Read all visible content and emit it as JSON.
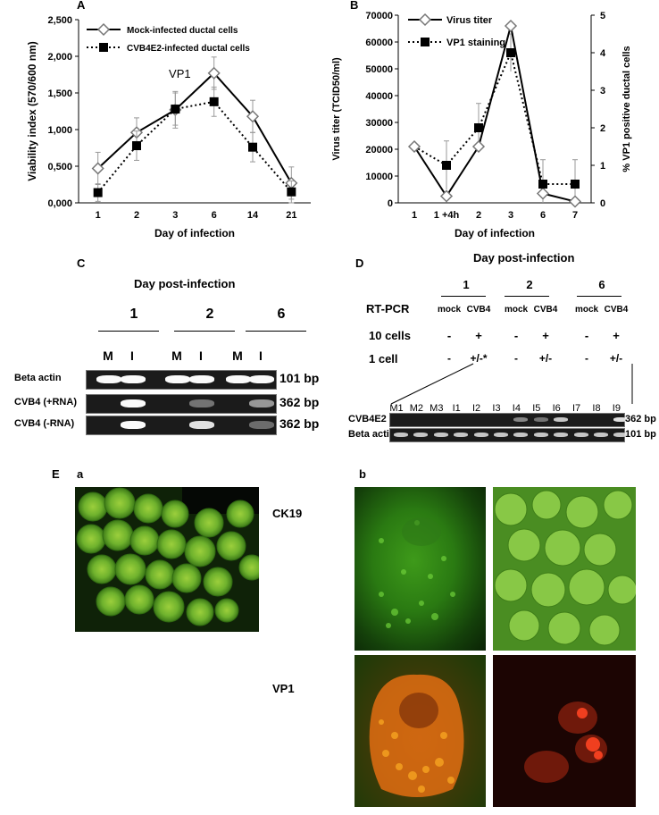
{
  "panel_labels": {
    "A": "A",
    "B": "B",
    "C": "C",
    "D": "D",
    "E": "E",
    "Ea": "a",
    "Eb": "b"
  },
  "chart_data": [
    {
      "type": "line",
      "panel": "A",
      "categories": [
        "1",
        "2",
        "3",
        "6",
        "14",
        "21"
      ],
      "xlabel": "Day of infection",
      "ylabel": "Viability index (570/600 nm)",
      "ylim": [
        0,
        2500
      ],
      "yticks": [
        "0,000",
        "0,500",
        "1,000",
        "1,500",
        "2,000",
        "2,500"
      ],
      "annotation": "VP1",
      "legend_position": "top-left",
      "series": [
        {
          "name": "Mock-infected ductal cells",
          "values": [
            0.47,
            0.96,
            1.27,
            1.77,
            1.18,
            0.27
          ],
          "errors": [
            0.22,
            0.2,
            0.25,
            0.22,
            0.22,
            0.22
          ],
          "style": "solid",
          "marker": "diamond-open"
        },
        {
          "name": "CVB4E2-infected ductal cells",
          "values": [
            0.14,
            0.78,
            1.28,
            1.38,
            0.76,
            0.15
          ],
          "errors": [
            0.12,
            0.2,
            0.22,
            0.2,
            0.2,
            0.15
          ],
          "style": "dotted",
          "marker": "square-filled"
        }
      ]
    },
    {
      "type": "line",
      "panel": "B",
      "categories": [
        "1",
        "1 +4h",
        "2",
        "3",
        "6",
        "7"
      ],
      "xlabel": "Day of infection",
      "ylabel_left": "Virus  titer (TCID50/ml)",
      "ylabel_right": "% VP1 positive ductal cells",
      "ylim_left": [
        0,
        70000
      ],
      "ylim_right": [
        0,
        5
      ],
      "yticks_left": [
        "0",
        "10000",
        "20000",
        "30000",
        "40000",
        "50000",
        "60000",
        "70000"
      ],
      "yticks_right": [
        "0",
        "1",
        "2",
        "3",
        "4",
        "5"
      ],
      "legend_position": "top-left",
      "series": [
        {
          "name": "Virus titer",
          "axis": "left",
          "values": [
            21000,
            2500,
            21000,
            66000,
            3500,
            500
          ],
          "style": "solid",
          "marker": "diamond-open"
        },
        {
          "name": "VP1 staining",
          "axis": "right",
          "values": [
            null,
            1.0,
            2.0,
            4.0,
            0.5,
            0.5
          ],
          "errors": [
            null,
            0.65,
            0.65,
            0.5,
            0.65,
            0.65
          ],
          "style": "dotted",
          "marker": "square-filled"
        }
      ]
    }
  ],
  "panelC": {
    "title": "Day post-infection",
    "days": [
      "1",
      "2",
      "6"
    ],
    "lanes": [
      "M",
      "I",
      "M",
      "I",
      "M",
      "I"
    ],
    "rows": [
      {
        "label": "Beta actin",
        "size": "101 bp"
      },
      {
        "label": "CVB4 (+RNA)",
        "size": "362 bp"
      },
      {
        "label": "CVB4 (-RNA)",
        "size": "362 bp"
      }
    ]
  },
  "panelD": {
    "title": "Day post-infection",
    "days": [
      "1",
      "2",
      "6"
    ],
    "rt_pcr": "RT-PCR",
    "conditions": [
      "mock",
      "CVB4",
      "mock",
      "CVB4",
      "mock",
      "CVB4"
    ],
    "row10_label": "10 cells",
    "row10": [
      "-",
      "+",
      "-",
      "+",
      "-",
      "+"
    ],
    "row1_label": "1 cell",
    "row1": [
      "-",
      "+/-*",
      "-",
      "+/-",
      "-",
      "+/-"
    ],
    "lanes": [
      "M1",
      "M2",
      "M3",
      "I1",
      "I2",
      "I3",
      "I4",
      "I5",
      "I6",
      "I7",
      "I8",
      "I9"
    ],
    "rows": [
      {
        "label": "CVB4E2",
        "size": "362 bp"
      },
      {
        "label": "Beta actin",
        "size": "101 bp"
      }
    ]
  },
  "panelE": {
    "row_labels": [
      "CK19",
      "VP1"
    ]
  }
}
